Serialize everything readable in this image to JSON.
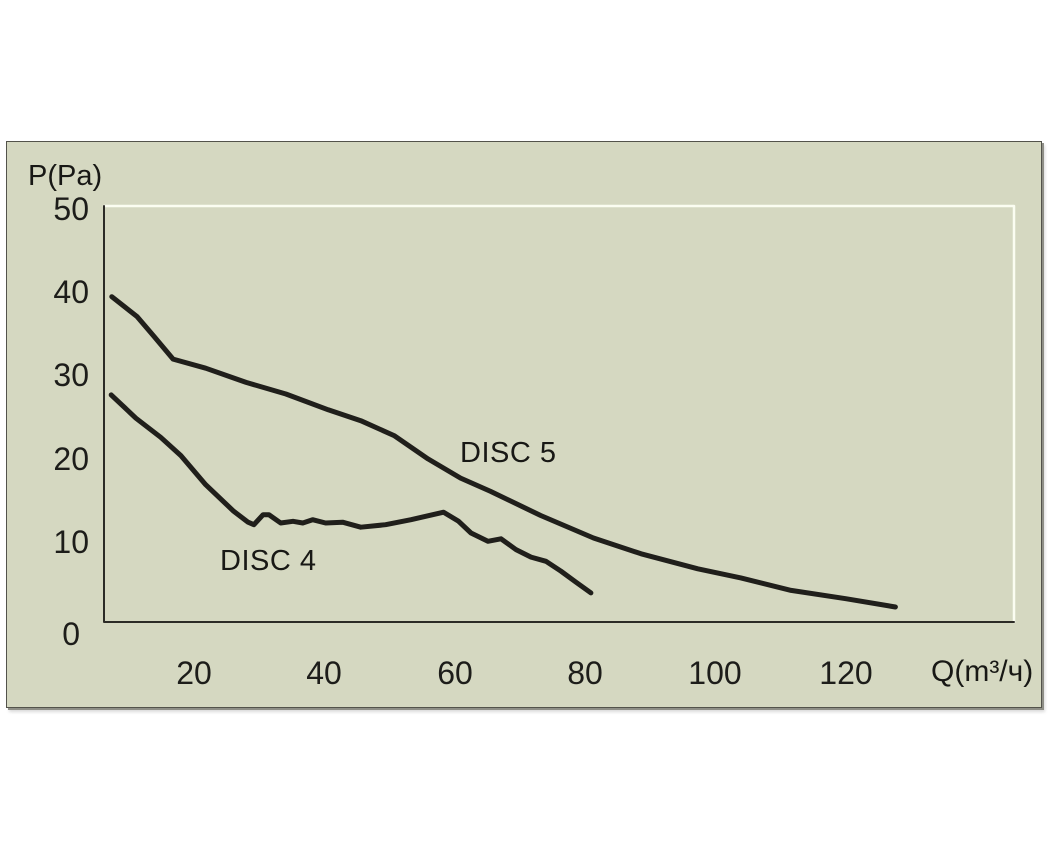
{
  "panel": {
    "background_color": "#d5d8c1",
    "border_color": "#53534b",
    "highlight_color": "#fbfdf1",
    "axis_color": "#2c2b26",
    "text_color": "#1d1d1a"
  },
  "chart_data": {
    "type": "line",
    "title": "",
    "xlabel": "Q(m³/ч)",
    "ylabel": "P(Pa)",
    "xlim": [
      6.2,
      145.8
    ],
    "ylim": [
      0,
      50
    ],
    "x_ticks": [
      20,
      40,
      60,
      80,
      100,
      120
    ],
    "y_ticks": [
      0,
      10,
      20,
      30,
      40,
      50
    ],
    "grid": false,
    "legend_position": "inline-labels",
    "line_color": "#201f1b",
    "line_width": 5,
    "series": [
      {
        "name": "DISC 5",
        "label": "DISC 5",
        "label_at": {
          "q": 60.8,
          "p": 22.2
        },
        "points": [
          [
            7.4,
            39.1
          ],
          [
            11.3,
            36.7
          ],
          [
            13.9,
            34.3
          ],
          [
            16.8,
            31.6
          ],
          [
            21.8,
            30.5
          ],
          [
            28,
            28.8
          ],
          [
            34.1,
            27.4
          ],
          [
            40.6,
            25.5
          ],
          [
            45.6,
            24.2
          ],
          [
            50.7,
            22.4
          ],
          [
            55.9,
            19.6
          ],
          [
            60.9,
            17.3
          ],
          [
            65.5,
            15.7
          ],
          [
            69.5,
            14.2
          ],
          [
            73.2,
            12.8
          ],
          [
            81.3,
            10.1
          ],
          [
            88.6,
            8.2
          ],
          [
            97.3,
            6.4
          ],
          [
            103.9,
            5.3
          ],
          [
            111.6,
            3.8
          ],
          [
            120,
            2.8
          ],
          [
            127.6,
            1.8
          ]
        ]
      },
      {
        "name": "DISC 4",
        "label": "DISC 4",
        "label_at": {
          "q": 24.0,
          "p": 9.3
        },
        "points": [
          [
            7.3,
            27.3
          ],
          [
            11.1,
            24.5
          ],
          [
            14.9,
            22.2
          ],
          [
            18,
            20
          ],
          [
            21.8,
            16.5
          ],
          [
            26.1,
            13.3
          ],
          [
            28.3,
            12
          ],
          [
            29.2,
            11.7
          ],
          [
            30.6,
            12.9
          ],
          [
            31.5,
            12.9
          ],
          [
            33.3,
            11.9
          ],
          [
            35.2,
            12.1
          ],
          [
            36.7,
            11.9
          ],
          [
            38.2,
            12.3
          ],
          [
            40.2,
            11.9
          ],
          [
            42.8,
            12
          ],
          [
            45.6,
            11.4
          ],
          [
            49.4,
            11.7
          ],
          [
            53.3,
            12.3
          ],
          [
            58.3,
            13.2
          ],
          [
            60.6,
            12.1
          ],
          [
            62.5,
            10.7
          ],
          [
            65.1,
            9.7
          ],
          [
            67.1,
            10
          ],
          [
            69.4,
            8.7
          ],
          [
            71.7,
            7.8
          ],
          [
            74,
            7.3
          ],
          [
            76.3,
            6.1
          ],
          [
            78.6,
            4.8
          ],
          [
            80.9,
            3.5
          ]
        ]
      }
    ]
  }
}
